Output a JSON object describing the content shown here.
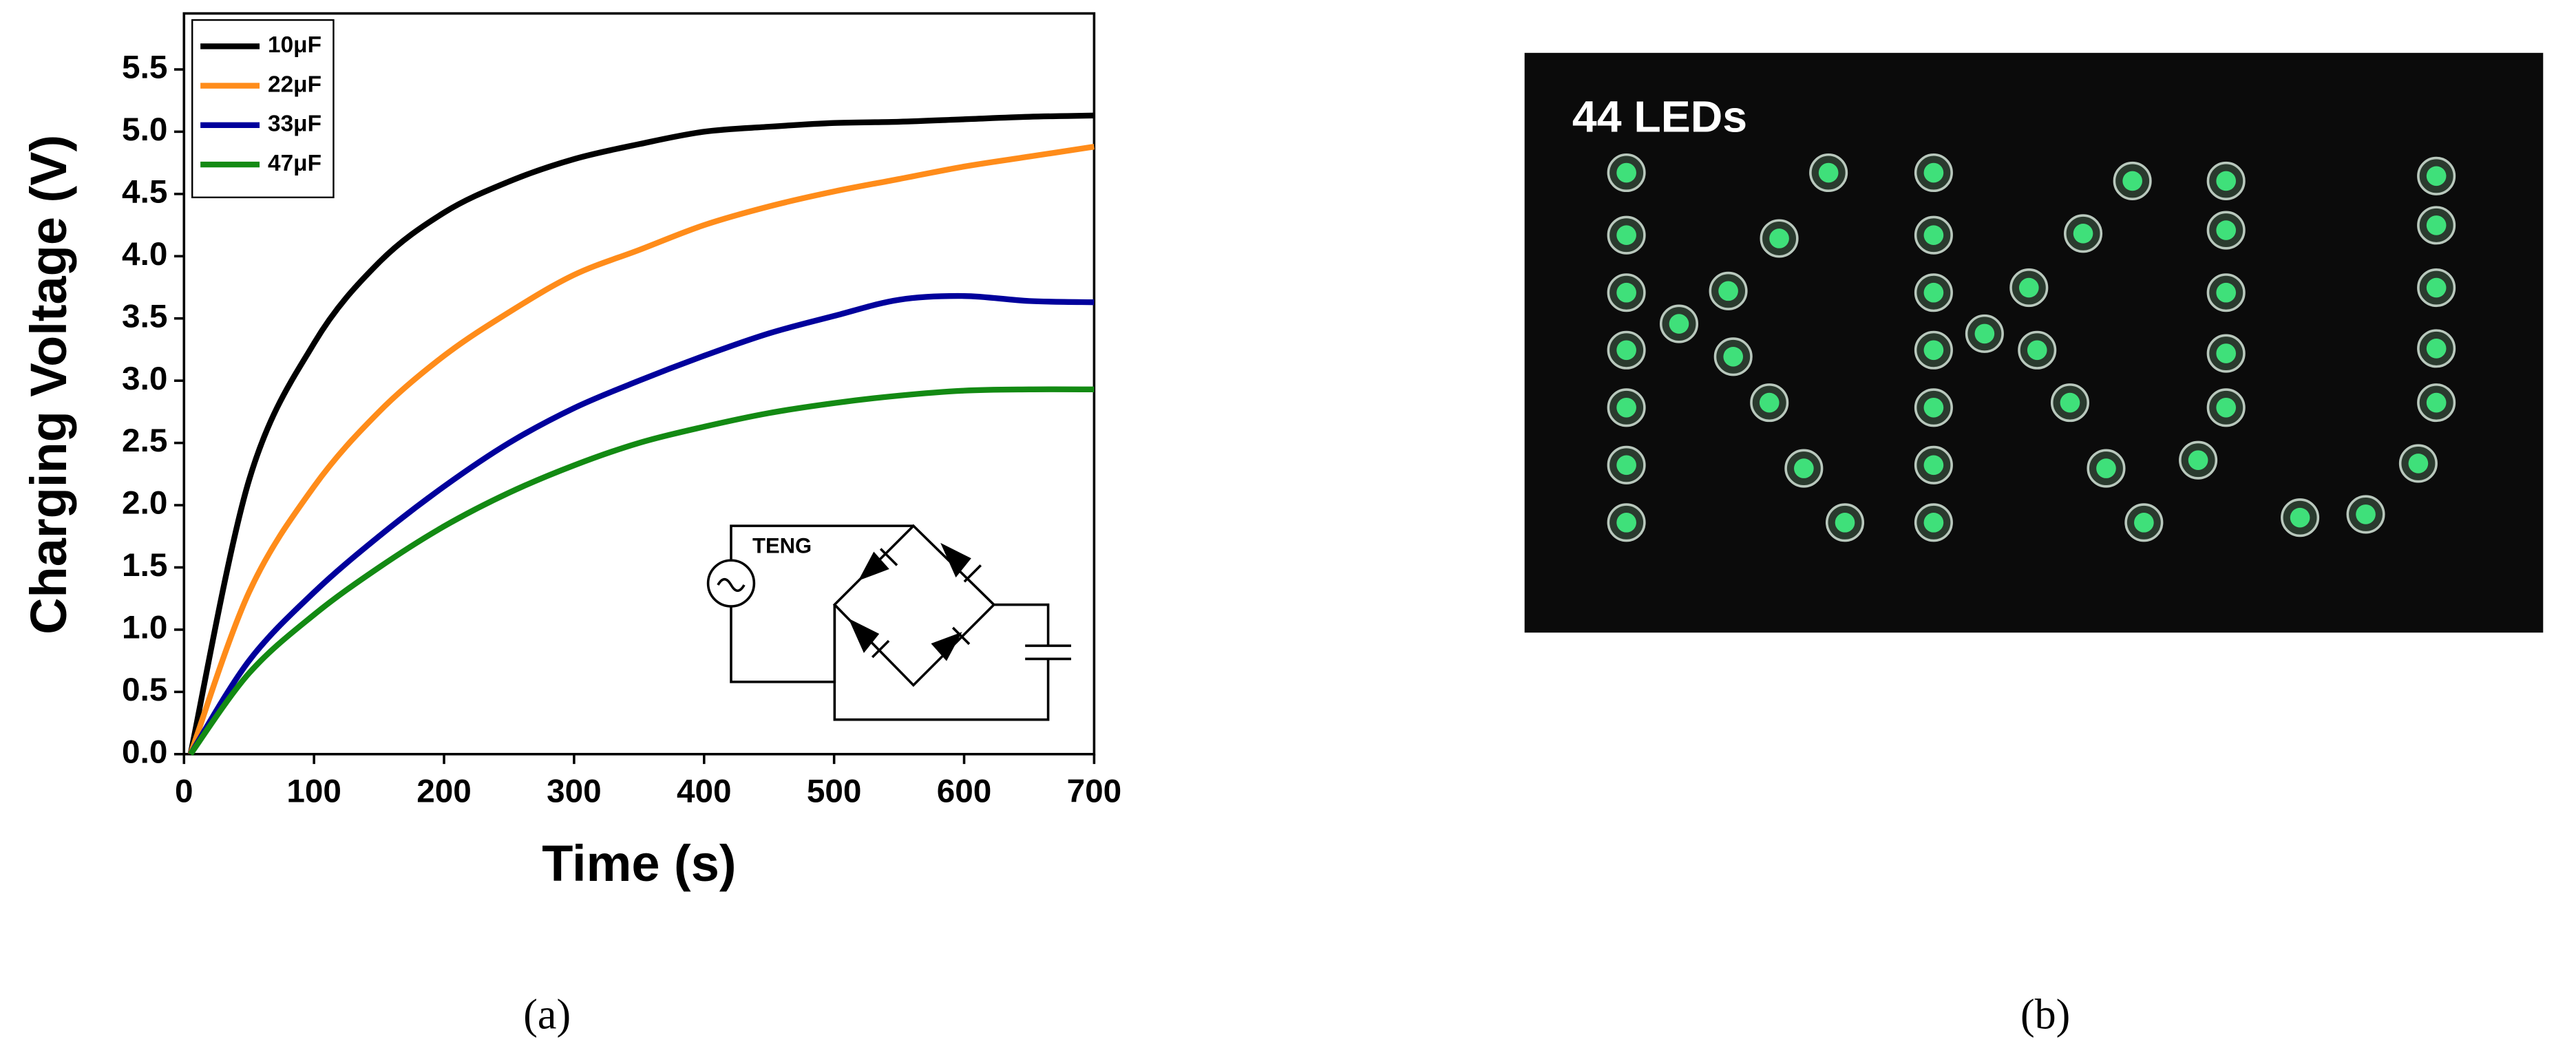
{
  "chart_data": {
    "type": "line",
    "xlabel": "Time (s)",
    "ylabel": "Charging Voltage (V)",
    "x": [
      5,
      50,
      100,
      150,
      200,
      250,
      300,
      350,
      400,
      450,
      500,
      550,
      600,
      650,
      700
    ],
    "series": [
      {
        "name": "10μF",
        "color": "#000000",
        "values": [
          0,
          2.2,
          3.3,
          3.95,
          4.35,
          4.6,
          4.78,
          4.9,
          5.0,
          5.04,
          5.07,
          5.08,
          5.1,
          5.12,
          5.13
        ]
      },
      {
        "name": "22μF",
        "color": "#ff8c1a",
        "values": [
          0,
          1.3,
          2.15,
          2.75,
          3.2,
          3.55,
          3.85,
          4.05,
          4.25,
          4.4,
          4.52,
          4.62,
          4.72,
          4.8,
          4.88
        ]
      },
      {
        "name": "33μF",
        "color": "#00009c",
        "values": [
          0,
          0.75,
          1.3,
          1.75,
          2.15,
          2.5,
          2.78,
          3.0,
          3.2,
          3.38,
          3.52,
          3.65,
          3.68,
          3.64,
          3.63
        ]
      },
      {
        "name": "47μF",
        "color": "#138a13",
        "values": [
          0,
          0.65,
          1.12,
          1.5,
          1.83,
          2.1,
          2.32,
          2.5,
          2.63,
          2.74,
          2.82,
          2.88,
          2.92,
          2.93,
          2.93
        ]
      }
    ],
    "xlim": [
      0,
      700
    ],
    "xticks": [
      0,
      100,
      200,
      300,
      400,
      500,
      600,
      700
    ],
    "ylim": [
      0,
      5.95
    ],
    "yticks": [
      {
        "value": 0,
        "label": "0.0"
      },
      0.5,
      {
        "value": 1,
        "label": "1.0"
      },
      1.5,
      {
        "value": 2,
        "label": "2.0"
      },
      2.5,
      {
        "value": 3,
        "label": "3.0"
      },
      3.5,
      {
        "value": 4,
        "label": "4.0"
      },
      4.5,
      {
        "value": 5,
        "label": "5.0"
      },
      5.5
    ],
    "legend": "upper left",
    "annotations": [
      "TENG"
    ]
  },
  "photo": {
    "label": "44 LEDs"
  },
  "captions": [
    "(a)",
    "(b)"
  ]
}
